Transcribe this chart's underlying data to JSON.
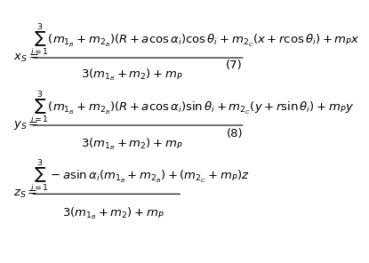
{
  "eq1_lhs": "x_s =",
  "eq1_num": "\\sum_{i=1}^{3}(m_{1_B}+m_{2_B})(R+a\\cos\\alpha_i)\\cos\\theta_i + m_{2_C}(x+r\\cos\\theta_i)+m_P x",
  "eq1_den": "3(m_{1_B}+m_2)+m_P",
  "eq1_label": "(7)",
  "eq2_lhs": "y_s =",
  "eq2_num": "\\sum_{i=1}^{3}(m_{1_B}+m_{2_B})(R+a\\cos\\alpha_i)\\sin\\theta_i + m_{2_C}(y+r\\sin\\theta_i)+m_P y",
  "eq2_den": "3(m_{1_B}+m_2)+m_P",
  "eq2_label": "(8)",
  "eq3_lhs": "z_s =",
  "eq3_num": "\\sum_{i=1}^{3}-a\\sin\\alpha_i(m_{1_B}+m_{2_B})+(m_{2_C}+m_P)z",
  "eq3_den": "3(m_{1_B}+m_2)+m_P",
  "bg_color": "#ffffff",
  "text_color": "#000000",
  "fontsize": 9.5
}
